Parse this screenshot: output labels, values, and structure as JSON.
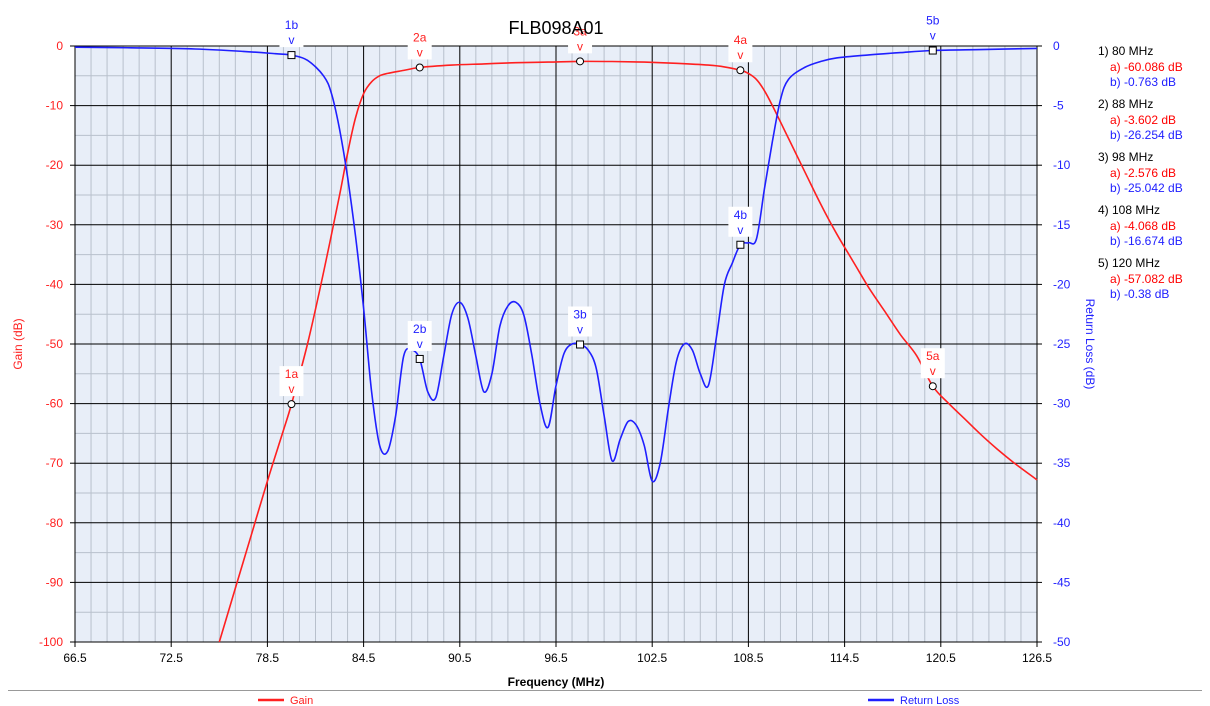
{
  "chart_data": {
    "type": "line",
    "title": "FLB098A01",
    "xlabel": "Frequency (MHz)",
    "ylabel_left": "Gain (dB)",
    "ylabel_right": "Return Loss (dB)",
    "xlim": [
      66.5,
      126.5
    ],
    "x_ticks": [
      66.5,
      72.5,
      78.5,
      84.5,
      90.5,
      96.5,
      102.5,
      108.5,
      114.5,
      120.5,
      126.5
    ],
    "ylim_left": [
      -100,
      0
    ],
    "y_ticks_left": [
      0,
      -10,
      -20,
      -30,
      -40,
      -50,
      -60,
      -70,
      -80,
      -90,
      -100
    ],
    "ylim_right": [
      -50,
      0
    ],
    "y_ticks_right": [
      0,
      -5,
      -10,
      -15,
      -20,
      -25,
      -30,
      -35,
      -40,
      -45,
      -50
    ],
    "grid": true,
    "legend_placement": "bottom",
    "series": [
      {
        "name": "Gain",
        "axis": "left",
        "color": "#ff2020",
        "x": [
          75.5,
          76.5,
          77.5,
          78.5,
          79.5,
          80,
          81,
          82,
          83,
          83.5,
          84,
          84.5,
          85,
          85.5,
          86,
          87,
          88,
          90,
          92,
          94,
          96,
          98,
          100,
          102,
          104,
          106,
          107,
          108,
          108.5,
          109,
          109.5,
          110,
          111,
          112,
          113,
          114,
          115,
          116,
          117,
          118,
          119,
          120,
          121,
          122,
          123,
          124,
          125,
          126.5
        ],
        "y": [
          -100,
          -91,
          -82,
          -73,
          -64.5,
          -60.086,
          -50,
          -38,
          -25,
          -18,
          -12,
          -8,
          -6,
          -5,
          -4.6,
          -4.1,
          -3.602,
          -3.2,
          -3,
          -2.8,
          -2.7,
          -2.576,
          -2.6,
          -2.7,
          -2.9,
          -3.2,
          -3.5,
          -4.068,
          -4.6,
          -5.6,
          -7.5,
          -10,
          -15.5,
          -21,
          -26.5,
          -31.5,
          -36,
          -40.5,
          -44.5,
          -48.5,
          -52,
          -57.082,
          -60,
          -62.6,
          -65.2,
          -67.6,
          -69.8,
          -72.8
        ]
      },
      {
        "name": "Return Loss",
        "axis": "right",
        "color": "#1f1fff",
        "x": [
          66.5,
          70,
          74,
          77,
          79,
          80,
          81,
          82,
          82.5,
          83,
          83.5,
          84,
          84.5,
          85,
          85.5,
          86,
          86.5,
          87,
          87.5,
          88,
          88.5,
          89,
          89.5,
          90,
          90.5,
          91,
          91.5,
          92,
          92.5,
          93,
          93.5,
          94,
          94.5,
          95,
          95.5,
          96,
          96.5,
          97,
          97.5,
          98,
          98.5,
          99,
          99.5,
          100,
          100.5,
          101,
          101.5,
          102,
          102.5,
          103,
          103.5,
          104,
          104.5,
          105,
          105.5,
          106,
          106.5,
          107,
          107.5,
          108,
          108.5,
          109,
          109.5,
          110,
          110.5,
          111,
          112,
          113,
          114,
          116,
          118,
          120,
          123,
          126.5
        ],
        "y": [
          -0.1,
          -0.15,
          -0.25,
          -0.45,
          -0.65,
          -0.763,
          -1.2,
          -2.5,
          -4,
          -7,
          -11,
          -16,
          -22,
          -29,
          -33.5,
          -34,
          -31,
          -26,
          -25.5,
          -26.254,
          -29,
          -29.5,
          -26,
          -22.5,
          -21.5,
          -22.8,
          -26,
          -29,
          -27.5,
          -23.5,
          -21.8,
          -21.5,
          -22.6,
          -26,
          -30,
          -32,
          -28.5,
          -25.8,
          -25,
          -25.042,
          -25.5,
          -27,
          -31,
          -34.8,
          -33,
          -31.5,
          -31.8,
          -33.5,
          -36.5,
          -35,
          -30.5,
          -26.5,
          -25,
          -25.5,
          -27.5,
          -28.5,
          -24.5,
          -20,
          -18.2,
          -16.674,
          -16.5,
          -16.2,
          -12,
          -8,
          -4.5,
          -2.8,
          -1.8,
          -1.3,
          -1,
          -0.75,
          -0.55,
          -0.38,
          -0.3,
          -0.2
        ]
      }
    ],
    "markers": [
      {
        "label": "1a",
        "series": 0,
        "x": 80,
        "y": -60.086
      },
      {
        "label": "2a",
        "series": 0,
        "x": 88,
        "y": -3.602
      },
      {
        "label": "3a",
        "series": 0,
        "x": 98,
        "y": -2.576
      },
      {
        "label": "4a",
        "series": 0,
        "x": 108,
        "y": -4.068
      },
      {
        "label": "5a",
        "series": 0,
        "x": 120,
        "y": -57.082
      },
      {
        "label": "1b",
        "series": 1,
        "x": 80,
        "y": -0.763
      },
      {
        "label": "2b",
        "series": 1,
        "x": 88,
        "y": -26.254
      },
      {
        "label": "3b",
        "series": 1,
        "x": 98,
        "y": -25.042
      },
      {
        "label": "4b",
        "series": 1,
        "x": 108,
        "y": -16.674
      },
      {
        "label": "5b",
        "series": 1,
        "x": 120,
        "y": -0.38
      }
    ],
    "marker_glyph": "v",
    "readouts": [
      {
        "head": "1) 80 MHz",
        "a": "a) -60.086 dB",
        "b": "b) -0.763 dB"
      },
      {
        "head": "2) 88 MHz",
        "a": "a) -3.602 dB",
        "b": "b) -26.254 dB"
      },
      {
        "head": "3) 98 MHz",
        "a": "a) -2.576 dB",
        "b": "b) -25.042 dB"
      },
      {
        "head": "4) 108 MHz",
        "a": "a) -4.068 dB",
        "b": "b) -16.674 dB"
      },
      {
        "head": "5) 120 MHz",
        "a": "a) -57.082 dB",
        "b": "b) -0.38 dB"
      }
    ],
    "legend": [
      {
        "label": "Gain",
        "color": "#ff2020"
      },
      {
        "label": "Return Loss",
        "color": "#1f1fff"
      }
    ],
    "colors": {
      "plot_background": "#e8eef8",
      "gain_axis": "#ff2020",
      "return_loss_axis": "#1f1fff"
    }
  }
}
